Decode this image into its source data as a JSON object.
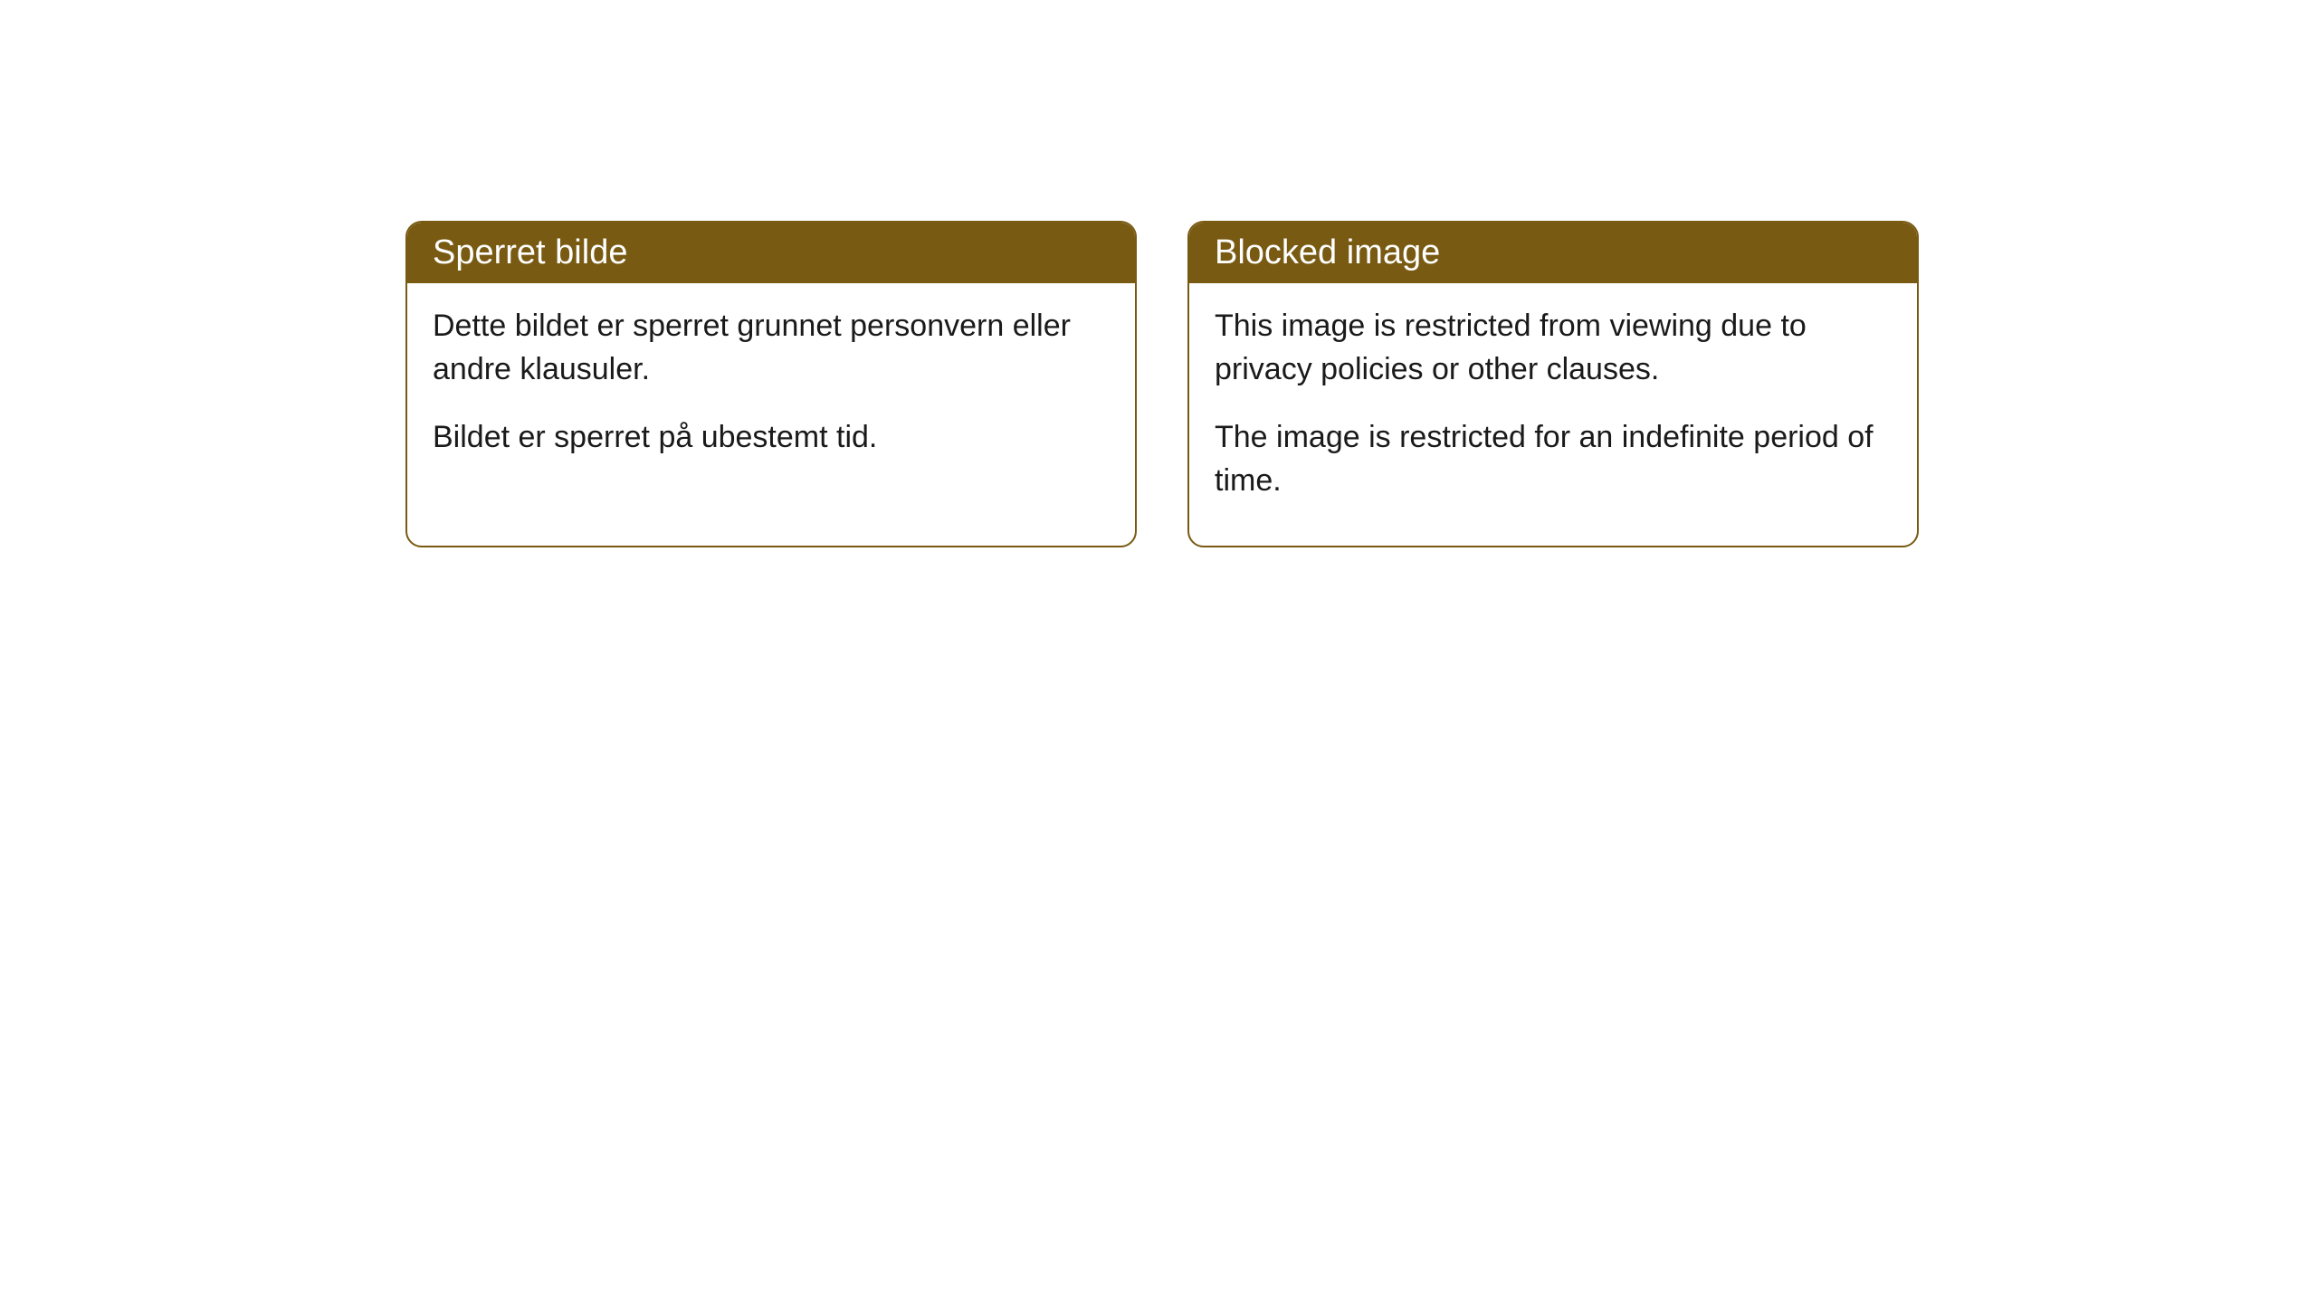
{
  "cards": [
    {
      "title": "Sperret bilde",
      "paragraph1": "Dette bildet er sperret grunnet personvern eller andre klausuler.",
      "paragraph2": "Bildet er sperret på ubestemt tid."
    },
    {
      "title": "Blocked image",
      "paragraph1": "This image is restricted from viewing due to privacy policies or other clauses.",
      "paragraph2": "The image is restricted for an indefinite period of time."
    }
  ],
  "styling": {
    "header_background": "#785a12",
    "header_text_color": "#ffffff",
    "border_color": "#785a12",
    "body_background": "#ffffff",
    "body_text_color": "#1a1a1a",
    "border_radius": 18,
    "header_fontsize": 38,
    "body_fontsize": 34
  }
}
